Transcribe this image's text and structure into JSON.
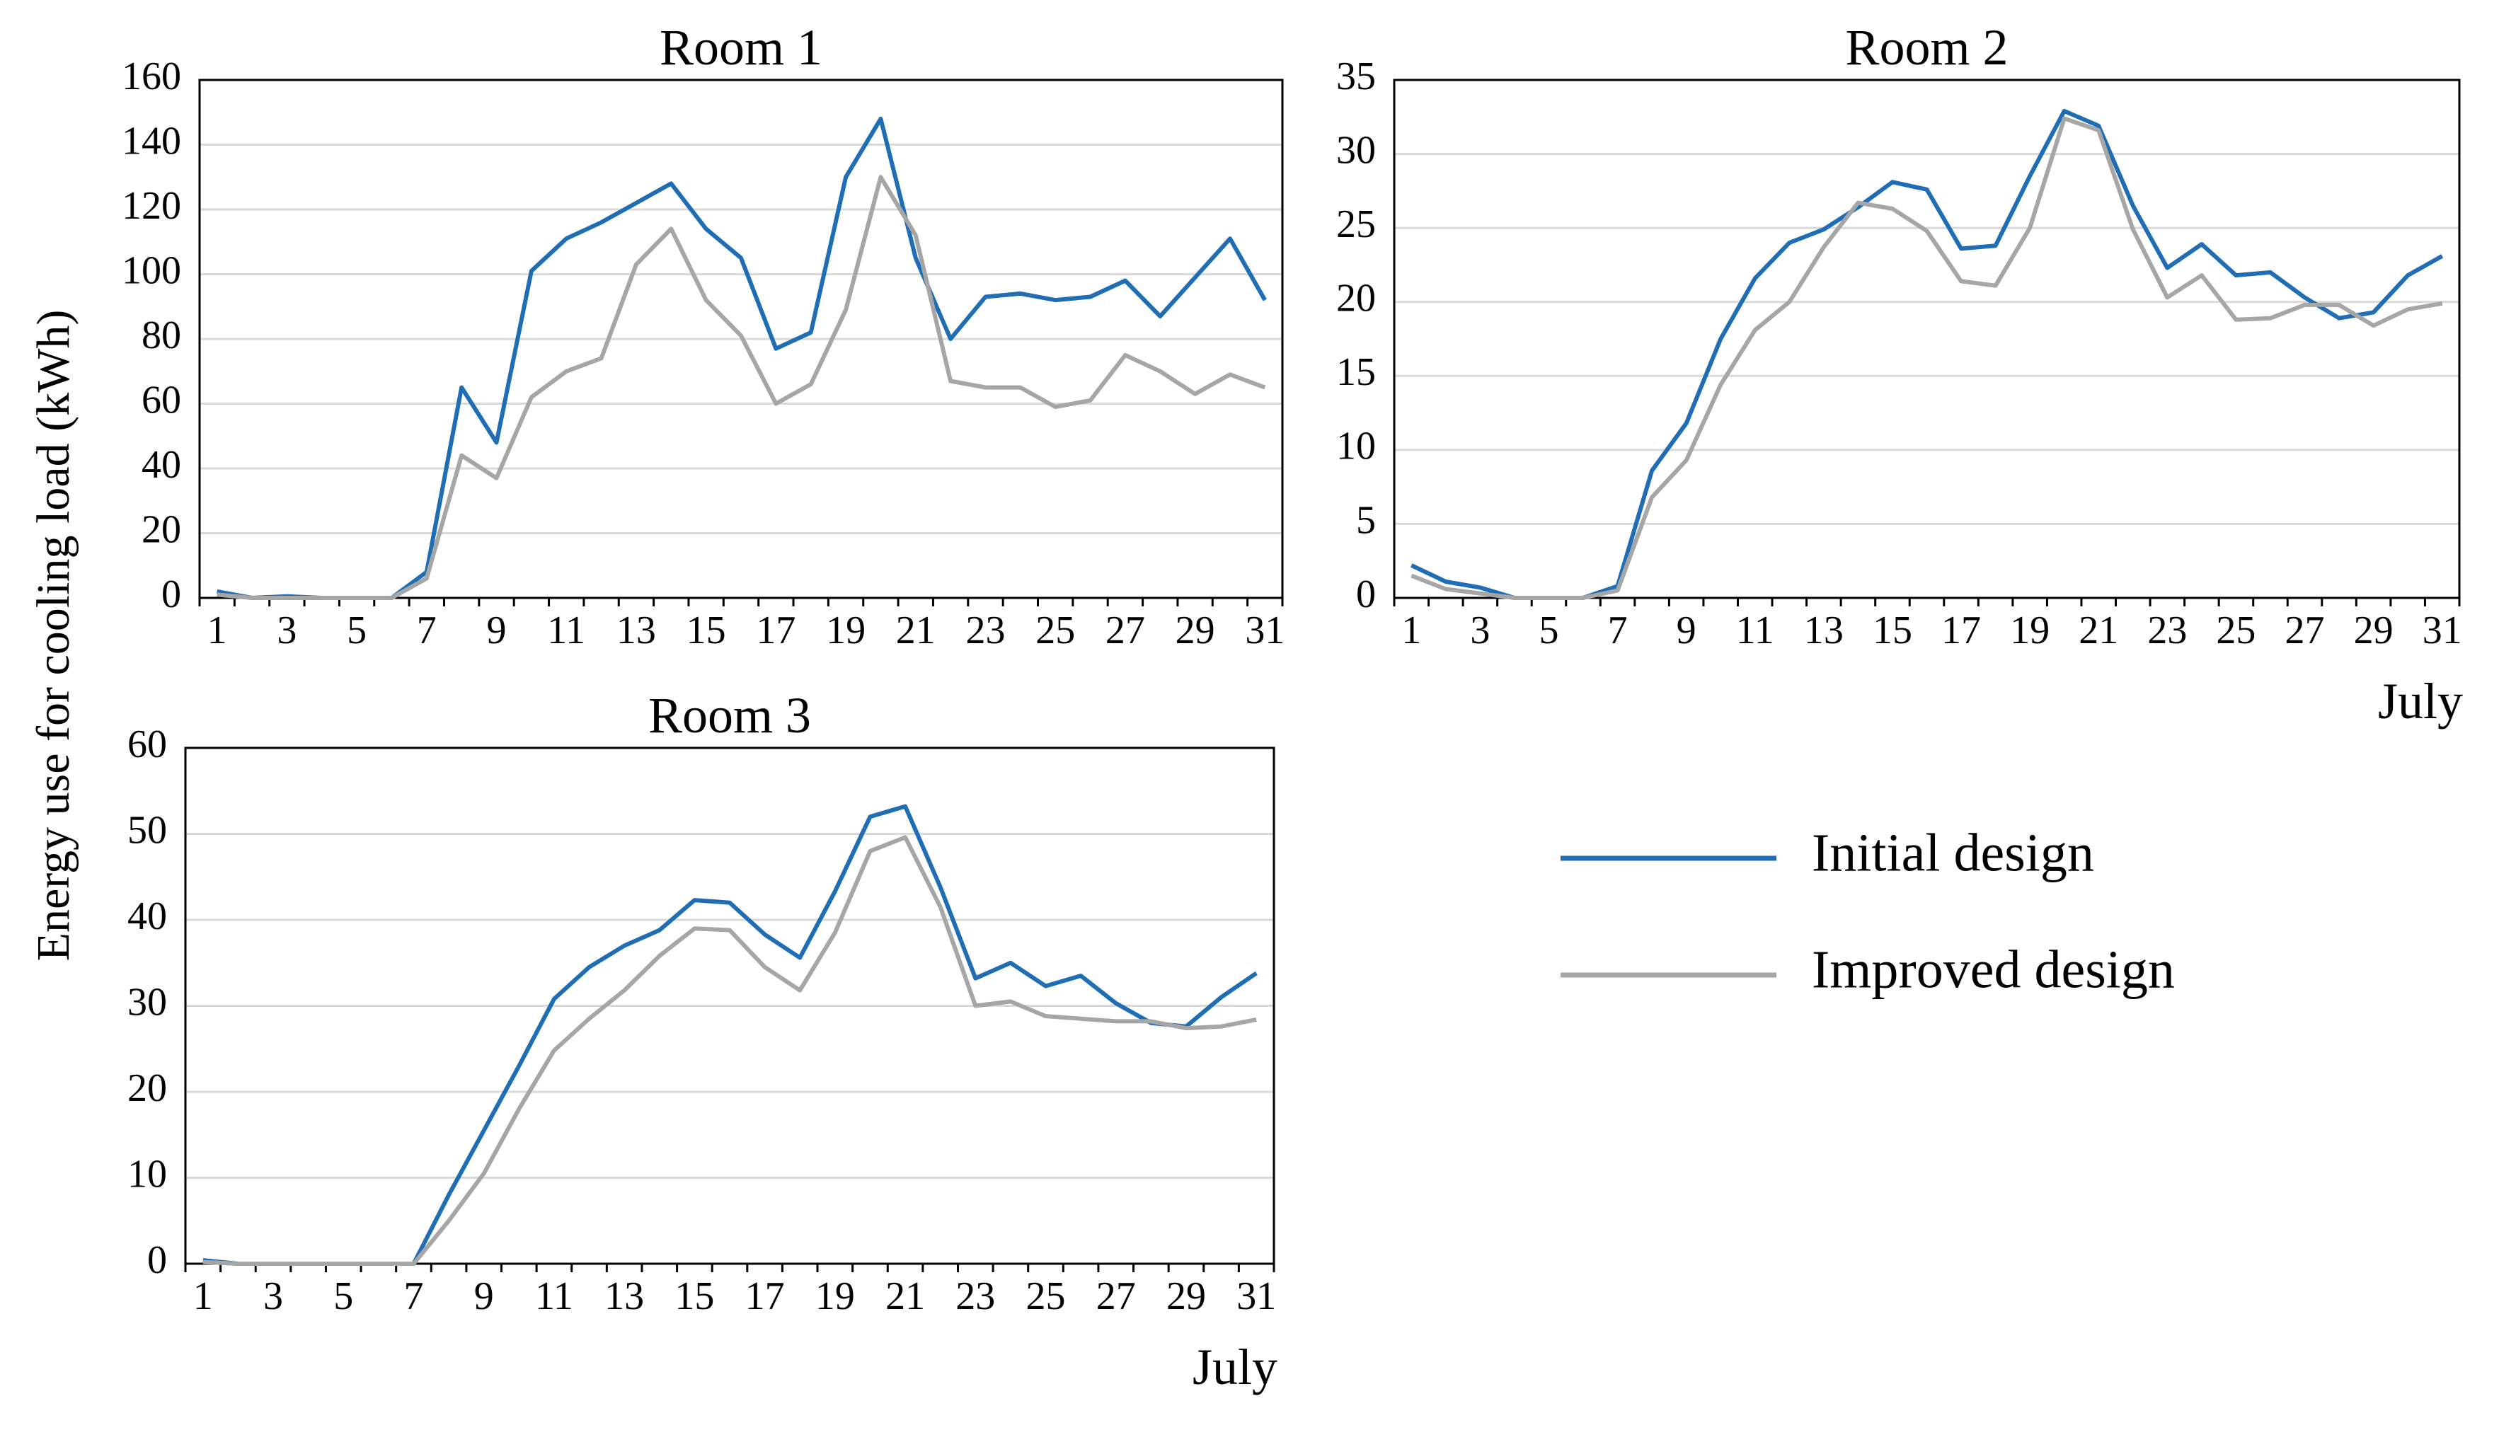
{
  "figure": {
    "ylabel": "Energy use for cooling load (kWh)",
    "legend": [
      "Initial design",
      "Improved design"
    ],
    "colors": {
      "initial": "#1f6db4",
      "improved": "#a6a6a6",
      "grid": "#d9d9d9",
      "axis": "#000000"
    }
  },
  "chart_data": [
    {
      "type": "line",
      "title": "Room 1",
      "xlabel": "",
      "ylabel": "Energy use for cooling load (kWh)",
      "x": [
        1,
        2,
        3,
        4,
        5,
        6,
        7,
        8,
        9,
        10,
        11,
        12,
        13,
        14,
        15,
        16,
        17,
        18,
        19,
        20,
        21,
        22,
        23,
        24,
        25,
        26,
        27,
        28,
        29,
        30,
        31
      ],
      "xticks": [
        "1",
        "3",
        "5",
        "7",
        "9",
        "11",
        "13",
        "15",
        "17",
        "19",
        "21",
        "23",
        "25",
        "27",
        "29",
        "31"
      ],
      "yticks": [
        "0",
        "20",
        "40",
        "60",
        "80",
        "100",
        "120",
        "140",
        "160"
      ],
      "ylim": [
        0,
        160
      ],
      "grid": true,
      "series": [
        {
          "name": "Initial design",
          "values": [
            2,
            0,
            0.5,
            0,
            0,
            0,
            8,
            65,
            48,
            101,
            111,
            116,
            122,
            128,
            114,
            105,
            77,
            82,
            130,
            148,
            105,
            80,
            93,
            94,
            92,
            93,
            98,
            87,
            99,
            111,
            92
          ]
        },
        {
          "name": "Improved design",
          "values": [
            1,
            0,
            0,
            0,
            0,
            0,
            6,
            44,
            37,
            62,
            70,
            74,
            103,
            114,
            92,
            81,
            60,
            66,
            89,
            130,
            112,
            67,
            65,
            65,
            59,
            61,
            75,
            70,
            63,
            69,
            65
          ]
        }
      ]
    },
    {
      "type": "line",
      "title": "Room 2",
      "xlabel": "July",
      "ylabel": "",
      "x": [
        1,
        2,
        3,
        4,
        5,
        6,
        7,
        8,
        9,
        10,
        11,
        12,
        13,
        14,
        15,
        16,
        17,
        18,
        19,
        20,
        21,
        22,
        23,
        24,
        25,
        26,
        27,
        28,
        29,
        30,
        31
      ],
      "xticks": [
        "1",
        "3",
        "5",
        "7",
        "9",
        "11",
        "13",
        "15",
        "17",
        "19",
        "21",
        "23",
        "25",
        "27",
        "29",
        "31"
      ],
      "yticks": [
        "0",
        "5",
        "10",
        "15",
        "20",
        "25",
        "30",
        "35"
      ],
      "ylim": [
        0,
        35
      ],
      "grid": true,
      "series": [
        {
          "name": "Initial design",
          "values": [
            2.2,
            1.1,
            0.7,
            0,
            0,
            0,
            0.8,
            8.6,
            11.8,
            17.5,
            21.6,
            24,
            24.9,
            26.4,
            28.1,
            27.6,
            23.6,
            23.8,
            28.5,
            32.9,
            31.9,
            26.5,
            22.3,
            23.9,
            21.8,
            22,
            20.3,
            18.9,
            19.3,
            21.8,
            23.1
          ]
        },
        {
          "name": "Improved design",
          "values": [
            1.5,
            0.6,
            0.3,
            0,
            0,
            0,
            0.5,
            6.8,
            9.3,
            14.4,
            18.1,
            20,
            23.7,
            26.7,
            26.3,
            24.8,
            21.4,
            21.1,
            25,
            32.4,
            31.6,
            24.9,
            20.3,
            21.8,
            18.8,
            18.9,
            19.8,
            19.8,
            18.4,
            19.5,
            19.9
          ]
        }
      ]
    },
    {
      "type": "line",
      "title": "Room 3",
      "xlabel": "July",
      "ylabel": "",
      "x": [
        1,
        2,
        3,
        4,
        5,
        6,
        7,
        8,
        9,
        10,
        11,
        12,
        13,
        14,
        15,
        16,
        17,
        18,
        19,
        20,
        21,
        22,
        23,
        24,
        25,
        26,
        27,
        28,
        29,
        30,
        31
      ],
      "xticks": [
        "1",
        "3",
        "5",
        "7",
        "9",
        "11",
        "13",
        "15",
        "17",
        "19",
        "21",
        "23",
        "25",
        "27",
        "29",
        "31"
      ],
      "yticks": [
        "0",
        "10",
        "20",
        "30",
        "40",
        "50",
        "60"
      ],
      "ylim": [
        0,
        60
      ],
      "grid": true,
      "series": [
        {
          "name": "Initial design",
          "values": [
            0.4,
            0,
            0,
            0,
            0,
            0,
            0,
            8,
            15.5,
            23,
            30.8,
            34.5,
            37,
            38.8,
            42.3,
            42,
            38.3,
            35.6,
            43.3,
            52,
            53.2,
            43.8,
            33.2,
            35,
            32.3,
            33.5,
            30.3,
            28,
            27.6,
            31,
            33.8
          ]
        },
        {
          "name": "Improved design",
          "values": [
            0.2,
            0,
            0,
            0,
            0,
            0,
            0,
            5,
            10.5,
            18,
            24.8,
            28.5,
            31.8,
            35.8,
            39,
            38.8,
            34.5,
            31.8,
            38.5,
            48,
            49.6,
            41.5,
            30,
            30.5,
            28.8,
            28.5,
            28.2,
            28.2,
            27.4,
            27.6,
            28.4
          ]
        }
      ]
    }
  ]
}
